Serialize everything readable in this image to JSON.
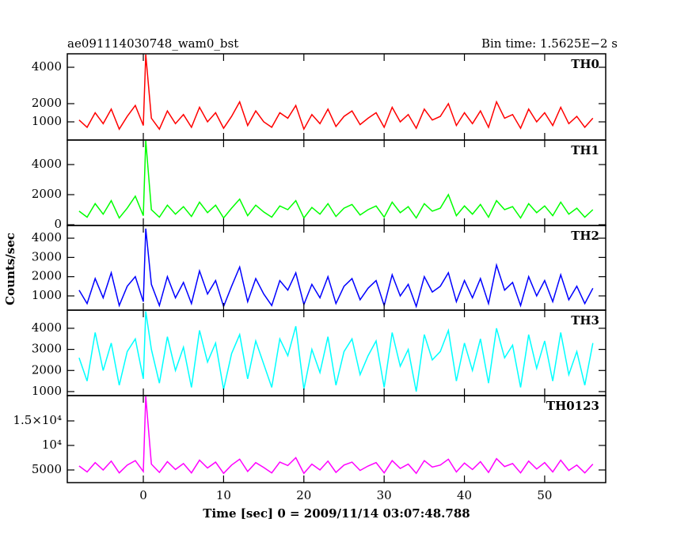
{
  "title": "ae091114030748_wam0_bst",
  "bin_time": "Bin time: 1.5625E−2 s",
  "xlabel": "Time [sec] 0 = 2009/11/14 03:07:48.788",
  "ylabel": "Counts/sec",
  "chart_data": [
    {
      "type": "line",
      "xlim": [
        -9.47,
        57.6
      ],
      "xticks": [
        0,
        10,
        20,
        30,
        40,
        50
      ],
      "ylim": [
        0,
        4740
      ],
      "yticks": [
        1000,
        2000,
        4000
      ],
      "x": [
        -8,
        -7,
        -6,
        -5,
        -4,
        -3,
        -2,
        -1,
        0,
        0.3,
        1,
        2,
        3,
        4,
        5,
        6,
        7,
        8,
        9,
        10,
        11,
        12,
        13,
        14,
        15,
        16,
        17,
        18,
        19,
        20,
        21,
        22,
        23,
        24,
        25,
        26,
        27,
        28,
        29,
        30,
        31,
        32,
        33,
        34,
        35,
        36,
        37,
        38,
        39,
        40,
        41,
        42,
        43,
        44,
        45,
        46,
        47,
        48,
        49,
        50,
        51,
        52,
        53,
        54,
        55,
        56
      ],
      "series": [
        {
          "name": "TH0",
          "color": "#ff0000",
          "values": [
            1100,
            700,
            1500,
            900,
            1700,
            600,
            1300,
            1900,
            800,
            4700,
            1200,
            600,
            1600,
            900,
            1400,
            700,
            1800,
            1000,
            1500,
            650,
            1300,
            2100,
            800,
            1600,
            1000,
            700,
            1500,
            1200,
            1900,
            600,
            1400,
            900,
            1700,
            750,
            1300,
            1600,
            850,
            1200,
            1500,
            700,
            1800,
            1000,
            1400,
            650,
            1700,
            1100,
            1300,
            2000,
            800,
            1500,
            900,
            1600,
            700,
            2100,
            1200,
            1400,
            650,
            1700,
            1000,
            1500,
            800,
            1800,
            900,
            1300,
            700,
            1200
          ]
        }
      ]
    },
    {
      "type": "line",
      "xlim": [
        -9.47,
        57.6
      ],
      "xticks": [
        0,
        10,
        20,
        30,
        40,
        50
      ],
      "ylim": [
        -50,
        5630
      ],
      "yticks": [
        0,
        2000,
        4000
      ],
      "x": [
        -8,
        -7,
        -6,
        -5,
        -4,
        -3,
        -2,
        -1,
        0,
        0.3,
        1,
        2,
        3,
        4,
        5,
        6,
        7,
        8,
        9,
        10,
        11,
        12,
        13,
        14,
        15,
        16,
        17,
        18,
        19,
        20,
        21,
        22,
        23,
        24,
        25,
        26,
        27,
        28,
        29,
        30,
        31,
        32,
        33,
        34,
        35,
        36,
        37,
        38,
        39,
        40,
        41,
        42,
        43,
        44,
        45,
        46,
        47,
        48,
        49,
        50,
        51,
        52,
        53,
        54,
        55,
        56
      ],
      "series": [
        {
          "name": "TH1",
          "color": "#00ff00",
          "values": [
            900,
            500,
            1400,
            700,
            1600,
            450,
            1100,
            1900,
            600,
            5600,
            1000,
            500,
            1300,
            700,
            1200,
            550,
            1500,
            800,
            1300,
            450,
            1100,
            1700,
            600,
            1300,
            850,
            500,
            1250,
            1000,
            1600,
            450,
            1150,
            700,
            1400,
            550,
            1100,
            1350,
            650,
            1000,
            1250,
            500,
            1500,
            800,
            1200,
            450,
            1400,
            900,
            1100,
            2000,
            600,
            1250,
            700,
            1350,
            500,
            1600,
            1000,
            1200,
            450,
            1400,
            800,
            1250,
            600,
            1500,
            700,
            1100,
            500,
            1000
          ]
        }
      ]
    },
    {
      "type": "line",
      "xlim": [
        -9.47,
        57.6
      ],
      "xticks": [
        0,
        10,
        20,
        30,
        40,
        50
      ],
      "ylim": [
        260,
        4660
      ],
      "yticks": [
        1000,
        2000,
        3000,
        4000
      ],
      "x": [
        -8,
        -7,
        -6,
        -5,
        -4,
        -3,
        -2,
        -1,
        0,
        0.3,
        1,
        2,
        3,
        4,
        5,
        6,
        7,
        8,
        9,
        10,
        11,
        12,
        13,
        14,
        15,
        16,
        17,
        18,
        19,
        20,
        21,
        22,
        23,
        24,
        25,
        26,
        27,
        28,
        29,
        30,
        31,
        32,
        33,
        34,
        35,
        36,
        37,
        38,
        39,
        40,
        41,
        42,
        43,
        44,
        45,
        46,
        47,
        48,
        49,
        50,
        51,
        52,
        53,
        54,
        55,
        56
      ],
      "series": [
        {
          "name": "TH2",
          "color": "#0000ff",
          "values": [
            1300,
            600,
            1900,
            900,
            2200,
            500,
            1500,
            2000,
            700,
            4500,
            1600,
            500,
            2000,
            900,
            1700,
            600,
            2300,
            1100,
            1800,
            450,
            1500,
            2500,
            700,
            1900,
            1100,
            500,
            1800,
            1300,
            2200,
            550,
            1600,
            900,
            2000,
            600,
            1500,
            1900,
            800,
            1400,
            1800,
            500,
            2100,
            1000,
            1600,
            450,
            2000,
            1200,
            1500,
            2200,
            700,
            1800,
            900,
            1900,
            600,
            2600,
            1300,
            1700,
            500,
            2000,
            1000,
            1800,
            700,
            2100,
            800,
            1500,
            600,
            1400
          ]
        }
      ]
    },
    {
      "type": "line",
      "xlim": [
        -9.47,
        57.6
      ],
      "xticks": [
        0,
        10,
        20,
        30,
        40,
        50
      ],
      "ylim": [
        810,
        4860
      ],
      "yticks": [
        1000,
        2000,
        3000,
        4000
      ],
      "x": [
        -8,
        -7,
        -6,
        -5,
        -4,
        -3,
        -2,
        -1,
        0,
        0.3,
        1,
        2,
        3,
        4,
        5,
        6,
        7,
        8,
        9,
        10,
        11,
        12,
        13,
        14,
        15,
        16,
        17,
        18,
        19,
        20,
        21,
        22,
        23,
        24,
        25,
        26,
        27,
        28,
        29,
        30,
        31,
        32,
        33,
        34,
        35,
        36,
        37,
        38,
        39,
        40,
        41,
        42,
        43,
        44,
        45,
        46,
        47,
        48,
        49,
        50,
        51,
        52,
        53,
        54,
        55,
        56
      ],
      "series": [
        {
          "name": "TH3",
          "color": "#00ffff",
          "values": [
            2600,
            1500,
            3800,
            2000,
            3300,
            1300,
            2900,
            3500,
            1600,
            4800,
            3000,
            1400,
            3600,
            2000,
            3100,
            1200,
            3900,
            2400,
            3300,
            1100,
            2800,
            3700,
            1600,
            3400,
            2300,
            1200,
            3500,
            2700,
            4100,
            1100,
            3000,
            1900,
            3600,
            1300,
            2900,
            3500,
            1800,
            2700,
            3400,
            1200,
            3800,
            2200,
            3000,
            1000,
            3700,
            2500,
            2900,
            3900,
            1500,
            3300,
            2000,
            3500,
            1400,
            4000,
            2600,
            3200,
            1200,
            3700,
            2100,
            3400,
            1500,
            3800,
            1800,
            2900,
            1300,
            3300
          ]
        }
      ]
    },
    {
      "type": "line",
      "xlim": [
        -9.47,
        57.6
      ],
      "xticks": [
        0,
        10,
        20,
        30,
        40,
        50
      ],
      "ylim": [
        2420,
        20160
      ],
      "yticks": [
        5000,
        {
          "value": 10000,
          "label": "10⁴"
        },
        {
          "value": 15000,
          "label": "1.5×10⁴"
        }
      ],
      "x": [
        -8,
        -7,
        -6,
        -5,
        -4,
        -3,
        -2,
        -1,
        0,
        0.3,
        1,
        2,
        3,
        4,
        5,
        6,
        7,
        8,
        9,
        10,
        11,
        12,
        13,
        14,
        15,
        16,
        17,
        18,
        19,
        20,
        21,
        22,
        23,
        24,
        25,
        26,
        27,
        28,
        29,
        30,
        31,
        32,
        33,
        34,
        35,
        36,
        37,
        38,
        39,
        40,
        41,
        42,
        43,
        44,
        45,
        46,
        47,
        48,
        49,
        50,
        51,
        52,
        53,
        54,
        55,
        56
      ],
      "series": [
        {
          "name": "TH0123",
          "color": "#ff00ff",
          "values": [
            5800,
            4600,
            6500,
            5000,
            6800,
            4400,
            6000,
            6900,
            4700,
            20000,
            6200,
            4500,
            6700,
            5100,
            6300,
            4400,
            7000,
            5400,
            6600,
            4300,
            6000,
            7200,
            4700,
            6500,
            5500,
            4400,
            6600,
            5900,
            7500,
            4300,
            6200,
            5000,
            6800,
            4500,
            6000,
            6600,
            4900,
            5800,
            6500,
            4400,
            6900,
            5300,
            6200,
            4300,
            6900,
            5600,
            6000,
            7200,
            4600,
            6400,
            5100,
            6700,
            4500,
            7300,
            5700,
            6300,
            4400,
            6800,
            5200,
            6500,
            4600,
            7000,
            4900,
            6000,
            4400,
            6200
          ]
        }
      ]
    }
  ]
}
